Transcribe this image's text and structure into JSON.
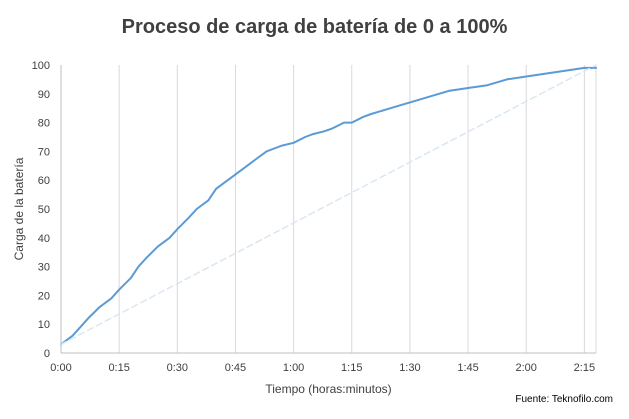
{
  "chart_data": {
    "type": "line",
    "title": "Proceso de carga de batería de 0 a 100%",
    "xlabel": "Tiempo (horas:minutos)",
    "ylabel": "Carga de la batería",
    "xlim": [
      0,
      138
    ],
    "ylim": [
      0,
      100
    ],
    "x_ticks": [
      {
        "value": 0,
        "label": "0:00"
      },
      {
        "value": 15,
        "label": "0:15"
      },
      {
        "value": 30,
        "label": "0:30"
      },
      {
        "value": 45,
        "label": "0:45"
      },
      {
        "value": 60,
        "label": "1:00"
      },
      {
        "value": 75,
        "label": "1:15"
      },
      {
        "value": 90,
        "label": "1:30"
      },
      {
        "value": 105,
        "label": "1:45"
      },
      {
        "value": 120,
        "label": "2:00"
      },
      {
        "value": 135,
        "label": "2:15"
      }
    ],
    "y_ticks": [
      0,
      10,
      20,
      30,
      40,
      50,
      60,
      70,
      80,
      90,
      100
    ],
    "grid": "vertical",
    "series": [
      {
        "color": "#5b9bd5",
        "style": "solid",
        "x": [
          0,
          3,
          5,
          7,
          10,
          13,
          15,
          18,
          20,
          22,
          25,
          28,
          30,
          33,
          35,
          38,
          40,
          42,
          45,
          48,
          50,
          52,
          53,
          55,
          57,
          60,
          63,
          65,
          68,
          70,
          73,
          75,
          78,
          80,
          85,
          90,
          95,
          100,
          105,
          110,
          115,
          120,
          125,
          130,
          135,
          138
        ],
        "y": [
          3,
          6,
          9,
          12,
          16,
          19,
          22,
          26,
          30,
          33,
          37,
          40,
          43,
          47,
          50,
          53,
          57,
          59,
          62,
          65,
          67,
          69,
          70,
          71,
          72,
          73,
          75,
          76,
          77,
          78,
          80,
          80,
          82,
          83,
          85,
          87,
          89,
          91,
          92,
          93,
          95,
          96,
          97,
          98,
          99,
          99
        ]
      },
      {
        "color": "#dae7f2",
        "style": "dashed",
        "x": [
          0,
          138
        ],
        "y": [
          3,
          100
        ]
      }
    ]
  },
  "source_note": "Fuente: Teknofilo.com"
}
